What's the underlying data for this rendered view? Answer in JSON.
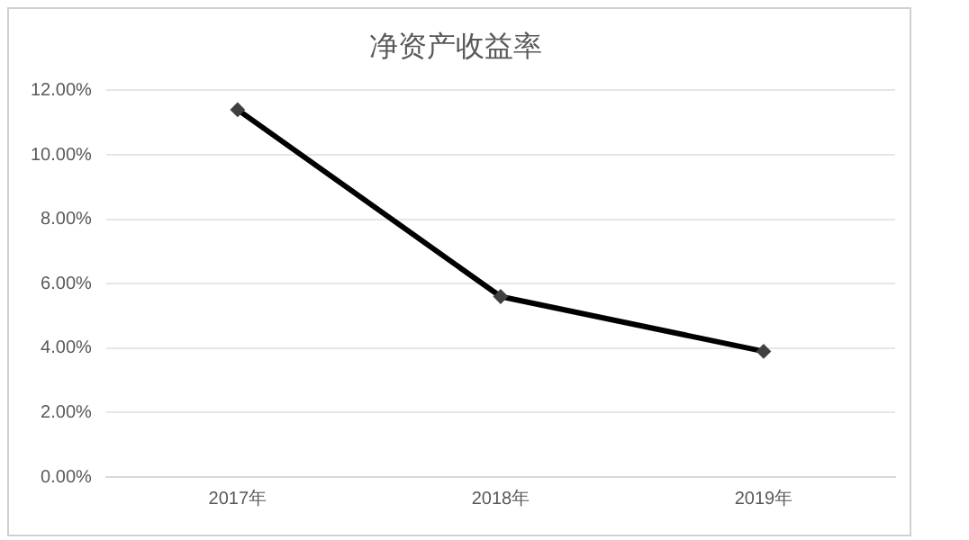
{
  "chart_data": {
    "type": "line",
    "title": "净资产收益率",
    "categories": [
      "2017年",
      "2018年",
      "2019年"
    ],
    "series": [
      {
        "color": "#000000",
        "values": [
          11.4,
          5.6,
          3.9
        ]
      }
    ],
    "ylim": [
      0,
      12
    ],
    "yticks": [
      {
        "value": 0,
        "label": "0.00%"
      },
      {
        "value": 2,
        "label": "2.00%"
      },
      {
        "value": 4,
        "label": "4.00%"
      },
      {
        "value": 6,
        "label": "6.00%"
      },
      {
        "value": 8,
        "label": "8.00%"
      },
      {
        "value": 10,
        "label": "10.00%"
      },
      {
        "value": 12,
        "label": "12.00%"
      }
    ],
    "grid": "y",
    "legend": false,
    "marker": "diamond",
    "line_style": "solid"
  }
}
